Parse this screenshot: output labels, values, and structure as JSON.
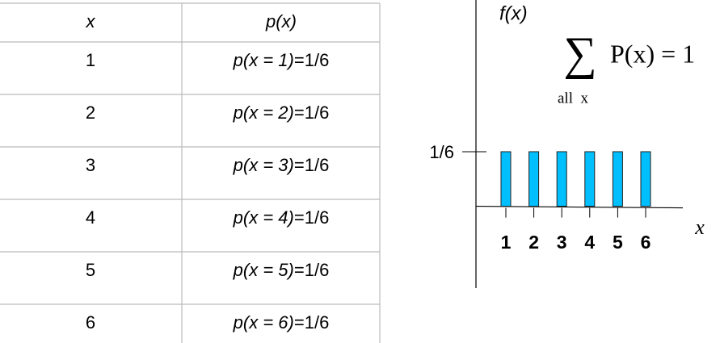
{
  "table": {
    "header": [
      "x",
      "p(x)"
    ],
    "rows": [
      [
        "1",
        {
          "expr": "p(x = 1)",
          "result": "=1/6"
        }
      ],
      [
        "2",
        {
          "expr": "p(x = 2)",
          "result": "=1/6"
        }
      ],
      [
        "3",
        {
          "expr": "p(x = 3)",
          "result": "=1/6"
        }
      ],
      [
        "4",
        {
          "expr": "p(x = 4)",
          "result": "=1/6"
        }
      ],
      [
        "5",
        {
          "expr": "p(x = 5)",
          "result": "=1/6"
        }
      ],
      [
        "6",
        {
          "expr": "p(x = 6)",
          "result": "=1/6"
        }
      ]
    ]
  },
  "chart_data": {
    "type": "bar",
    "y_label": "f(x)",
    "x_label": "x",
    "formula": {
      "sigma": "∑",
      "body": "P(x) = 1",
      "subscript": "all  x"
    },
    "categories": [
      "1",
      "2",
      "3",
      "4",
      "5",
      "6"
    ],
    "values": [
      0.16667,
      0.16667,
      0.16667,
      0.16667,
      0.16667,
      0.16667
    ],
    "color": "#00bfff",
    "ylim": [
      -0.25,
      0.63
    ],
    "yticks": [
      {
        "value": 0.16667,
        "label": "1/6"
      }
    ]
  }
}
